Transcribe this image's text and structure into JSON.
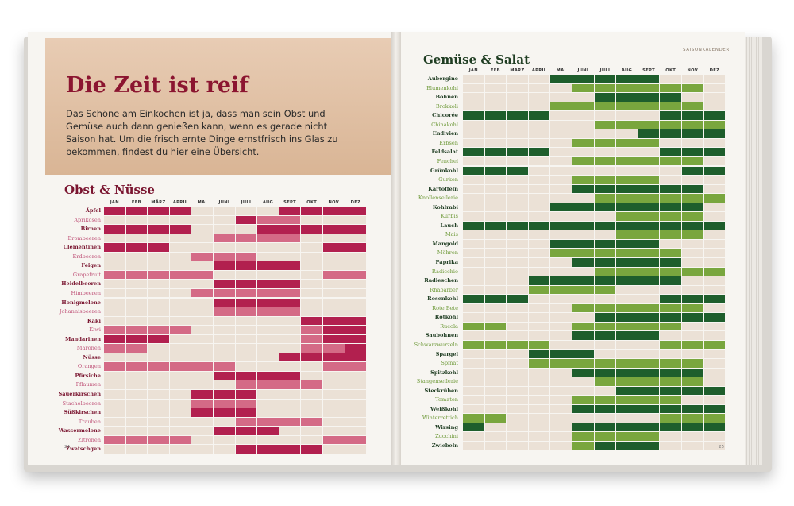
{
  "left": {
    "heading": "Die Zeit ist reif",
    "intro": "Das Schöne am Einkochen ist ja, dass man sein Obst und Gemüse auch dann genießen kann, wenn es gerade nicht Saison hat. Um die frisch ernte Dinge ernstfrisch ins Glas zu bekommen, findest du hier eine Übersicht.",
    "section_title": "Obst & Nüsse",
    "page_number": "24",
    "colors": {
      "full": "#b2204f",
      "partial": "#d46a86",
      "empty": "#ebe1d6",
      "label_strong": "#7a1530",
      "label_light": "#c0557a"
    }
  },
  "right": {
    "section_title": "Gemüse & Salat",
    "running_head": "SAISONKALENDER",
    "page_number": "25",
    "colors": {
      "full": "#1e5e2c",
      "partial": "#79a63e",
      "empty": "#ebe1d6",
      "label_strong": "#1f3d22",
      "label_light": "#6f9a3a"
    }
  },
  "months": [
    "JAN",
    "FEB",
    "MÄRZ",
    "APRIL",
    "MAI",
    "JUNI",
    "JULI",
    "AUG",
    "SEPT",
    "OKT",
    "NOV",
    "DEZ"
  ],
  "fruits": [
    {
      "name": "Äpfel",
      "strong": true,
      "s": "222200002222"
    },
    {
      "name": "Aprikosen",
      "strong": false,
      "s": "000000211000"
    },
    {
      "name": "Birnen",
      "strong": true,
      "s": "222200022222"
    },
    {
      "name": "Brombeeren",
      "strong": false,
      "s": "000001111000"
    },
    {
      "name": "Clementinen",
      "strong": true,
      "s": "222000000022"
    },
    {
      "name": "Erdbeeren",
      "strong": false,
      "s": "000011100000"
    },
    {
      "name": "Feigen",
      "strong": true,
      "s": "000002222000"
    },
    {
      "name": "Grapefruit",
      "strong": false,
      "s": "111110000011"
    },
    {
      "name": "Heidelbeeren",
      "strong": true,
      "s": "000002222000"
    },
    {
      "name": "Himbeeren",
      "strong": false,
      "s": "000011111000"
    },
    {
      "name": "Honigmelone",
      "strong": true,
      "s": "000002222000"
    },
    {
      "name": "Johannisbeeren",
      "strong": false,
      "s": "000001111000"
    },
    {
      "name": "Kaki",
      "strong": true,
      "s": "000000000222"
    },
    {
      "name": "Kiwi",
      "strong": false,
      "s": "111100000122"
    },
    {
      "name": "Mandarinen",
      "strong": true,
      "s": "222000000122"
    },
    {
      "name": "Maronen",
      "strong": false,
      "s": "110000000112"
    },
    {
      "name": "Nüsse",
      "strong": true,
      "s": "000000002222"
    },
    {
      "name": "Orangen",
      "strong": false,
      "s": "111111000011"
    },
    {
      "name": "Pfirsiche",
      "strong": true,
      "s": "000002222000"
    },
    {
      "name": "Pflaumen",
      "strong": false,
      "s": "000000111100"
    },
    {
      "name": "Sauerkirschen",
      "strong": true,
      "s": "000022200000"
    },
    {
      "name": "Stachelbeeren",
      "strong": false,
      "s": "000011100000"
    },
    {
      "name": "Süßkirschen",
      "strong": true,
      "s": "000022200000"
    },
    {
      "name": "Trauben",
      "strong": false,
      "s": "000000111100"
    },
    {
      "name": "Wassermelone",
      "strong": true,
      "s": "000002220000"
    },
    {
      "name": "Zitronen",
      "strong": false,
      "s": "111100000011"
    },
    {
      "name": "Zwetschgen",
      "strong": true,
      "s": "000000222200"
    }
  ],
  "vegetables": [
    {
      "name": "Aubergine",
      "strong": true,
      "s": "000022222000"
    },
    {
      "name": "Blumenkohl",
      "strong": false,
      "s": "000001111110"
    },
    {
      "name": "Bohnen",
      "strong": true,
      "s": "000000222200"
    },
    {
      "name": "Brokkoli",
      "strong": false,
      "s": "000011111110"
    },
    {
      "name": "Chicorée",
      "strong": true,
      "s": "222200000222"
    },
    {
      "name": "Chinakohl",
      "strong": false,
      "s": "000000111111"
    },
    {
      "name": "Endivien",
      "strong": true,
      "s": "000000002222"
    },
    {
      "name": "Erbsen",
      "strong": false,
      "s": "000001111000"
    },
    {
      "name": "Feldsalat",
      "strong": true,
      "s": "222200000222"
    },
    {
      "name": "Fenchel",
      "strong": false,
      "s": "000001111110"
    },
    {
      "name": "Grünkohl",
      "strong": true,
      "s": "222000000022"
    },
    {
      "name": "Gurken",
      "strong": false,
      "s": "000001111000"
    },
    {
      "name": "Kartoffeln",
      "strong": true,
      "s": "000002222220"
    },
    {
      "name": "Knollensellerie",
      "strong": false,
      "s": "000000111111"
    },
    {
      "name": "Kohlrabi",
      "strong": true,
      "s": "000022222220"
    },
    {
      "name": "Kürbis",
      "strong": false,
      "s": "000000011110"
    },
    {
      "name": "Lauch",
      "strong": true,
      "s": "222222222222"
    },
    {
      "name": "Mais",
      "strong": false,
      "s": "000000011110"
    },
    {
      "name": "Mangold",
      "strong": true,
      "s": "000022222000"
    },
    {
      "name": "Möhren",
      "strong": false,
      "s": "000011111100"
    },
    {
      "name": "Paprika",
      "strong": true,
      "s": "000002222200"
    },
    {
      "name": "Radicchio",
      "strong": false,
      "s": "000000111111"
    },
    {
      "name": "Radieschen",
      "strong": true,
      "s": "000222222200"
    },
    {
      "name": "Rhabarber",
      "strong": false,
      "s": "000111100000"
    },
    {
      "name": "Rosenkohl",
      "strong": true,
      "s": "222000000222"
    },
    {
      "name": "Rote Bete",
      "strong": false,
      "s": "000001111110"
    },
    {
      "name": "Rotkohl",
      "strong": true,
      "s": "000000222222"
    },
    {
      "name": "Rucola",
      "strong": false,
      "s": "110001111100"
    },
    {
      "name": "Saubohnen",
      "strong": true,
      "s": "000002222000"
    },
    {
      "name": "Schwarzwurzeln",
      "strong": false,
      "s": "111100000111"
    },
    {
      "name": "Spargel",
      "strong": true,
      "s": "000222000000"
    },
    {
      "name": "Spinat",
      "strong": false,
      "s": "000111111110"
    },
    {
      "name": "Spitzkohl",
      "strong": true,
      "s": "000002222220"
    },
    {
      "name": "Stangensellerie",
      "strong": false,
      "s": "000000111110"
    },
    {
      "name": "Steckrüben",
      "strong": true,
      "s": "000000022222"
    },
    {
      "name": "Tomaten",
      "strong": false,
      "s": "000001111100"
    },
    {
      "name": "Weißkohl",
      "strong": true,
      "s": "000002222222"
    },
    {
      "name": "Winterrettich",
      "strong": false,
      "s": "110000000111"
    },
    {
      "name": "Wirsing",
      "strong": true,
      "s": "200002222222"
    },
    {
      "name": "Zucchini",
      "strong": false,
      "s": "000001111000"
    },
    {
      "name": "Zwiebeln",
      "strong": true,
      "s": "000001222000"
    }
  ]
}
